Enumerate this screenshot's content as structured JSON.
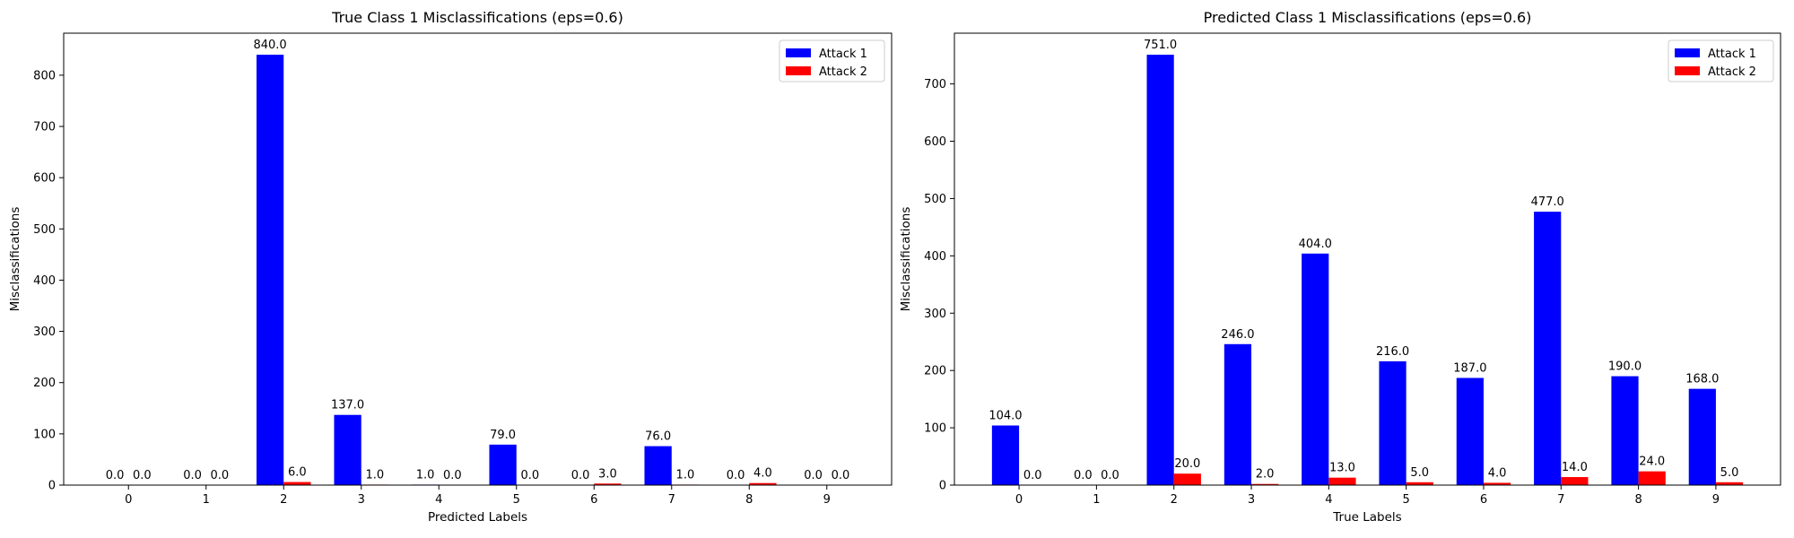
{
  "chart_data": [
    {
      "type": "bar",
      "title": "True Class 1 Misclassifications (eps=0.6)",
      "xlabel": "Predicted Labels",
      "ylabel": "Misclassifications",
      "categories": [
        "0",
        "1",
        "2",
        "3",
        "4",
        "5",
        "6",
        "7",
        "8",
        "9"
      ],
      "ylim": [
        0,
        882
      ],
      "yticks": [
        0,
        100,
        200,
        300,
        400,
        500,
        600,
        700,
        800
      ],
      "legend_position": "top-right",
      "grid": false,
      "series": [
        {
          "name": "Attack 1",
          "color": "#0000ff",
          "values": [
            0,
            0,
            840,
            137,
            1,
            79,
            0,
            76,
            0,
            0
          ],
          "labels": [
            "0.0",
            "0.0",
            "840.0",
            "137.0",
            "1.0",
            "79.0",
            "0.0",
            "76.0",
            "0.0",
            "0.0"
          ]
        },
        {
          "name": "Attack 2",
          "color": "#ff0000",
          "values": [
            0,
            0,
            6,
            1,
            0,
            0,
            3,
            1,
            4,
            0
          ],
          "labels": [
            "0.0",
            "0.0",
            "6.0",
            "1.0",
            "0.0",
            "0.0",
            "3.0",
            "1.0",
            "4.0",
            "0.0"
          ]
        }
      ]
    },
    {
      "type": "bar",
      "title": "Predicted Class 1 Misclassifications (eps=0.6)",
      "xlabel": "True Labels",
      "ylabel": "Misclassifications",
      "categories": [
        "0",
        "1",
        "2",
        "3",
        "4",
        "5",
        "6",
        "7",
        "8",
        "9"
      ],
      "ylim": [
        0,
        788.55
      ],
      "yticks": [
        0,
        100,
        200,
        300,
        400,
        500,
        600,
        700
      ],
      "legend_position": "top-right",
      "grid": false,
      "series": [
        {
          "name": "Attack 1",
          "color": "#0000ff",
          "values": [
            104,
            0,
            751,
            246,
            404,
            216,
            187,
            477,
            190,
            168
          ],
          "labels": [
            "104.0",
            "0.0",
            "751.0",
            "246.0",
            "404.0",
            "216.0",
            "187.0",
            "477.0",
            "190.0",
            "168.0"
          ]
        },
        {
          "name": "Attack 2",
          "color": "#ff0000",
          "values": [
            0,
            0,
            20,
            2,
            13,
            5,
            4,
            14,
            24,
            5
          ],
          "labels": [
            "0.0",
            "0.0",
            "20.0",
            "2.0",
            "13.0",
            "5.0",
            "4.0",
            "14.0",
            "24.0",
            "5.0"
          ]
        }
      ]
    }
  ]
}
